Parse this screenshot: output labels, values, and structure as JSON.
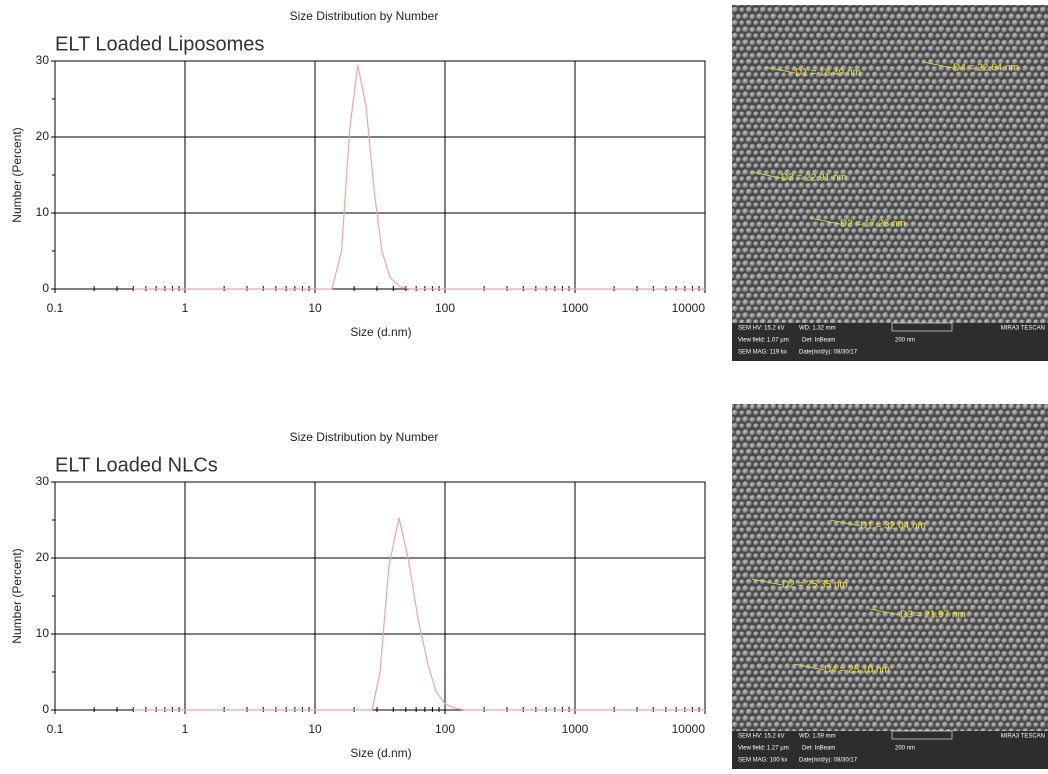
{
  "chart_data": [
    {
      "type": "line",
      "title": "Size Distribution by Number",
      "panel_label": "ELT Loaded Liposomes",
      "xlabel": "Size (d.nm)",
      "ylabel": "Number (Percent)",
      "xscale": "log",
      "x": [
        0.4,
        13.5,
        16,
        18.5,
        21.3,
        24.7,
        28.5,
        32.7,
        37.8,
        45,
        54,
        10000
      ],
      "series": [
        {
          "color": "#f4a3a3",
          "values": [
            0,
            0,
            5,
            21,
            29.5,
            24,
            13,
            5,
            1.5,
            0.3,
            0,
            0
          ]
        }
      ],
      "xlim": [
        0.1,
        10000
      ],
      "xticks": [
        0.1,
        1,
        10,
        100,
        1000,
        10000
      ],
      "ylim": [
        0,
        30
      ],
      "yticks": [
        0,
        10,
        20,
        30
      ],
      "yminor_ticks": [
        5,
        15,
        25
      ],
      "grid": true
    },
    {
      "type": "line",
      "title": "Size Distribution by Number",
      "panel_label": "ELT Loaded NLCs",
      "xlabel": "Size (d.nm)",
      "ylabel": "Number (Percent)",
      "xscale": "log",
      "x": [
        0.4,
        27.5,
        31.6,
        37.1,
        44.2,
        52,
        62,
        74,
        85,
        100,
        122,
        143,
        10000
      ],
      "series": [
        {
          "color": "#f4a3a3",
          "values": [
            0,
            0,
            5,
            19,
            25.3,
            20,
            12,
            6,
            2.5,
            0.8,
            0.2,
            0,
            0
          ]
        }
      ],
      "xlim": [
        0.1,
        10000
      ],
      "xticks": [
        0.1,
        1,
        10,
        100,
        1000,
        10000
      ],
      "ylim": [
        0,
        30
      ],
      "yticks": [
        0,
        10,
        20,
        30
      ],
      "yminor_ticks": [
        5,
        15,
        25
      ],
      "grid": true
    }
  ],
  "sem_images": [
    {
      "annotations": [
        "D1 = 18.49 nm",
        "D4 = 22.64 nm",
        "D3 = 22.91 nm",
        "D2 = 17.28 nm"
      ],
      "info": [
        "SEM HV: 15.2 kV",
        "WD: 1.32 mm",
        "MIRA3 TESCAN",
        "View field: 1.07 µm",
        "Det: InBeam",
        "200 nm",
        "SEM MAG: 119 kx",
        "Date(m/d/y): 08/30/17"
      ]
    },
    {
      "annotations": [
        "D1 = 32.04 nm",
        "D2 = 25.35 nm",
        "D3 = 21.97 nm",
        "D4 = 25.10 nm"
      ],
      "info": [
        "SEM HV: 15.2 kV",
        "WD: 1.59 mm",
        "MIRA3 TESCAN",
        "View field: 1.27 µm",
        "Det: InBeam",
        "200 nm",
        "SEM MAG: 100 kx",
        "Date(m/d/y): 08/30/17"
      ]
    }
  ]
}
